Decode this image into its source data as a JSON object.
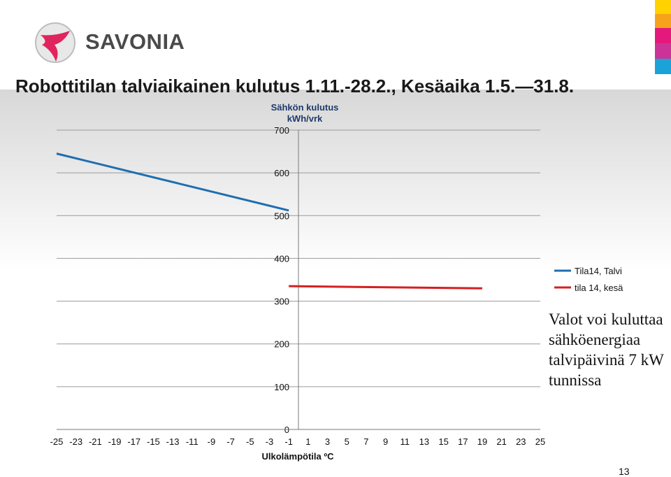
{
  "brand": {
    "name": "SAVONIA"
  },
  "slide": {
    "title": "Robottitilan talviaikainen kulutus 1.11.-28.2., Kesäaika 1.5.—31.8.",
    "note": "Valot voi kuluttaa sähköenergiaa talvipäivinä 7 kW tunnissa",
    "page_number": "13"
  },
  "accent_colors": [
    "#ffd200",
    "#f7a21b",
    "#e5197b",
    "#cc3399",
    "#1aa3d9"
  ],
  "chart_data": {
    "type": "line",
    "ylabel": "Sähkön kulutus",
    "yunit": "kWh/vrk",
    "xlabel": "Ulkolämpötila ºC",
    "xlim": [
      -25,
      25
    ],
    "ylim": [
      0,
      700
    ],
    "x_ticks": [
      -25,
      -23,
      -21,
      -19,
      -17,
      -15,
      -13,
      -11,
      -9,
      -7,
      -5,
      -3,
      -1,
      1,
      3,
      5,
      7,
      9,
      11,
      13,
      15,
      17,
      19,
      21,
      23,
      25
    ],
    "y_ticks": [
      0,
      100,
      200,
      300,
      400,
      500,
      600,
      700
    ],
    "grid": true,
    "legend_position": "right",
    "series": [
      {
        "name": "Tila14, Talvi",
        "color": "#1f6eb0",
        "x": [
          -25,
          -1
        ],
        "y": [
          645,
          512
        ]
      },
      {
        "name": "tila 14, kesä",
        "color": "#d42020",
        "x": [
          -1,
          19
        ],
        "y": [
          335,
          330
        ]
      }
    ]
  }
}
